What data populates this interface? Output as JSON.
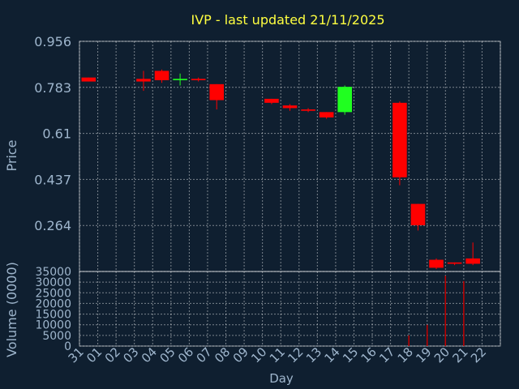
{
  "chart_data": {
    "type": "candlestick",
    "title": "IVP - last updated 21/11/2025",
    "xlabel": "Day",
    "ylabel": "Price",
    "volume_label": "Volume (0000)",
    "x_ticks": [
      "31",
      "01",
      "02",
      "03",
      "04",
      "05",
      "06",
      "07",
      "08",
      "09",
      "10",
      "11",
      "12",
      "13",
      "14",
      "15",
      "16",
      "17",
      "18",
      "19",
      "20",
      "21",
      "22"
    ],
    "price_ticks": [
      "0.956",
      "0.783",
      "0.61",
      "0.437",
      "0.264"
    ],
    "price_tick_values": [
      0.956,
      0.783,
      0.61,
      0.437,
      0.264
    ],
    "price_range": [
      0.091,
      0.956
    ],
    "volume_ticks": [
      "35000",
      "30000",
      "25000",
      "20000",
      "15000",
      "10000",
      "5000",
      "0"
    ],
    "volume_tick_values": [
      35000,
      30000,
      25000,
      20000,
      15000,
      10000,
      5000,
      0
    ],
    "volume_range": [
      0,
      35000
    ],
    "grid": true,
    "candles": [
      {
        "day": "31",
        "open": 0.82,
        "close": 0.805,
        "high": 0.82,
        "low": 0.805
      },
      {
        "day": "03",
        "open": 0.815,
        "close": 0.805,
        "high": 0.845,
        "low": 0.77
      },
      {
        "day": "04",
        "open": 0.845,
        "close": 0.81,
        "high": 0.85,
        "low": 0.8
      },
      {
        "day": "05",
        "open": 0.81,
        "close": 0.815,
        "high": 0.835,
        "low": 0.79
      },
      {
        "day": "06",
        "open": 0.815,
        "close": 0.81,
        "high": 0.82,
        "low": 0.805
      },
      {
        "day": "07",
        "open": 0.795,
        "close": 0.735,
        "high": 0.795,
        "low": 0.7
      },
      {
        "day": "10",
        "open": 0.74,
        "close": 0.725,
        "high": 0.74,
        "low": 0.72
      },
      {
        "day": "11",
        "open": 0.715,
        "close": 0.705,
        "high": 0.72,
        "low": 0.695
      },
      {
        "day": "12",
        "open": 0.7,
        "close": 0.695,
        "high": 0.705,
        "low": 0.69
      },
      {
        "day": "13",
        "open": 0.69,
        "close": 0.67,
        "high": 0.69,
        "low": 0.665
      },
      {
        "day": "14",
        "open": 0.69,
        "close": 0.785,
        "high": 0.79,
        "low": 0.68
      },
      {
        "day": "17",
        "open": 0.725,
        "close": 0.445,
        "high": 0.73,
        "low": 0.415
      },
      {
        "day": "18",
        "open": 0.345,
        "close": 0.265,
        "high": 0.345,
        "low": 0.245
      },
      {
        "day": "19",
        "open": 0.135,
        "close": 0.105,
        "high": 0.14,
        "low": 0.1
      },
      {
        "day": "20",
        "open": 0.125,
        "close": 0.12,
        "high": 0.125,
        "low": 0.115
      },
      {
        "day": "21",
        "open": 0.14,
        "close": 0.12,
        "high": 0.2,
        "low": 0.115
      }
    ],
    "volume": [
      {
        "day": "18",
        "value": 5000
      },
      {
        "day": "19",
        "value": 10000
      },
      {
        "day": "20",
        "value": 33000
      },
      {
        "day": "21",
        "value": 30500
      }
    ],
    "colors": {
      "background": "#0f1f30",
      "text": "#9fb6cd",
      "title": "#ffff40",
      "up": "#20ff20",
      "down": "#ff0000",
      "volume": "#c00000",
      "grid": "#ffffff"
    }
  }
}
